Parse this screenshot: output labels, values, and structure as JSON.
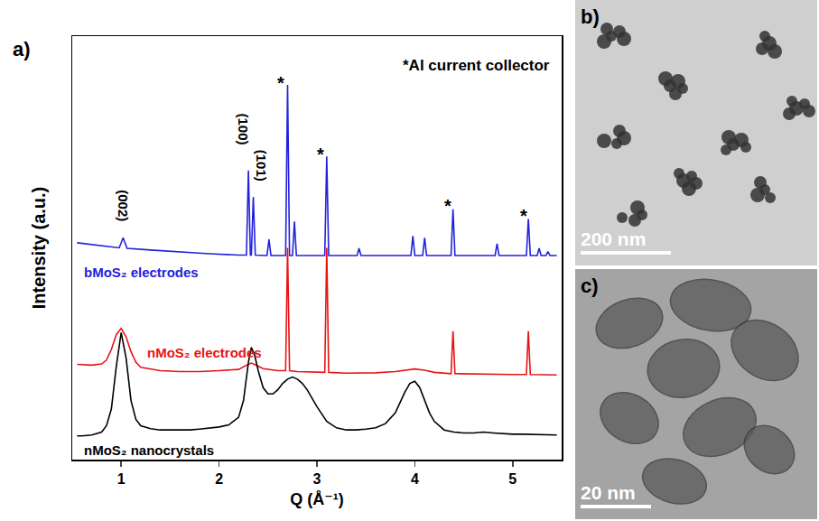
{
  "chart_data": {
    "type": "line",
    "xlabel": "Q (Å⁻¹)",
    "ylabel": "Intensity (a.u.)",
    "xlim": [
      0.5,
      5.5
    ],
    "xticks": [
      1,
      2,
      3,
      4,
      5
    ],
    "ylim": [
      0,
      100
    ],
    "yticks": [],
    "tick_labels": "x",
    "grid": false,
    "series": [
      {
        "name": "bMoS₂ electrodes",
        "color": "#2222dd",
        "x": [
          0.55,
          0.8,
          0.98,
          1.02,
          1.06,
          1.3,
          1.6,
          1.9,
          2.2,
          2.28,
          2.3,
          2.32,
          2.33,
          2.35,
          2.37,
          2.49,
          2.51,
          2.53,
          2.68,
          2.7,
          2.72,
          2.75,
          2.77,
          2.79,
          3.08,
          3.1,
          3.12,
          3.41,
          3.43,
          3.45,
          3.96,
          3.98,
          4.0,
          4.08,
          4.1,
          4.12,
          4.37,
          4.39,
          4.41,
          4.82,
          4.84,
          4.86,
          5.14,
          5.16,
          5.18,
          5.25,
          5.27,
          5.29,
          5.34,
          5.36,
          5.38,
          5.45
        ],
        "values": [
          51.2,
          50.5,
          50,
          52.4,
          49.9,
          49.5,
          49,
          48.6,
          48.3,
          48.3,
          68.3,
          48.3,
          48.3,
          62,
          48.3,
          48.2,
          52,
          48.2,
          48.2,
          88.5,
          48.2,
          48.2,
          56.2,
          48.2,
          48.2,
          71.6,
          48.2,
          48.2,
          49.9,
          48.2,
          48.2,
          52.8,
          48.2,
          48.2,
          52.4,
          48.2,
          48.2,
          59.1,
          48.2,
          48.2,
          51,
          48.2,
          48.2,
          56.8,
          48.2,
          48.2,
          49.9,
          48.2,
          48.2,
          49.1,
          48.2,
          48.2
        ]
      },
      {
        "name": "nMoS₂ electrodes",
        "color": "#e81414",
        "x": [
          0.55,
          0.7,
          0.8,
          0.85,
          0.9,
          0.95,
          1.0,
          1.05,
          1.1,
          1.15,
          1.2,
          1.4,
          1.6,
          1.8,
          2.0,
          2.2,
          2.28,
          2.33,
          2.38,
          2.45,
          2.6,
          2.68,
          2.7,
          2.72,
          2.8,
          3.0,
          3.08,
          3.1,
          3.12,
          3.3,
          3.6,
          3.8,
          3.9,
          4.0,
          4.1,
          4.2,
          4.37,
          4.39,
          4.41,
          4.6,
          5.0,
          5.14,
          5.16,
          5.18,
          5.45
        ],
        "values": [
          22.5,
          22.3,
          22.6,
          23.5,
          26,
          29.5,
          31,
          29,
          25.5,
          23,
          21.8,
          21,
          20.8,
          20.8,
          21,
          21.3,
          22.3,
          22.8,
          22.3,
          21.5,
          21,
          21,
          50,
          21,
          20.8,
          20.6,
          20.6,
          50,
          20.6,
          20.4,
          20.5,
          20.8,
          21.1,
          21.4,
          21.1,
          20.6,
          20.3,
          30.3,
          20.3,
          20.2,
          20.1,
          20.1,
          30.3,
          20.1,
          20
        ]
      },
      {
        "name": "nMoS₂ nanocrystals",
        "color": "#000000",
        "x": [
          0.55,
          0.6,
          0.7,
          0.8,
          0.85,
          0.9,
          0.95,
          1.0,
          1.05,
          1.1,
          1.15,
          1.2,
          1.3,
          1.4,
          1.5,
          1.6,
          1.7,
          1.8,
          1.9,
          2.0,
          2.1,
          2.2,
          2.25,
          2.3,
          2.33,
          2.36,
          2.4,
          2.45,
          2.5,
          2.55,
          2.6,
          2.65,
          2.7,
          2.75,
          2.8,
          2.85,
          2.9,
          3.0,
          3.1,
          3.2,
          3.3,
          3.4,
          3.5,
          3.6,
          3.7,
          3.8,
          3.85,
          3.9,
          3.95,
          4.0,
          4.05,
          4.1,
          4.15,
          4.2,
          4.3,
          4.4,
          4.5,
          4.6,
          4.7,
          4.8,
          4.9,
          5.0,
          5.1,
          5.2,
          5.3,
          5.45
        ],
        "values": [
          5.6,
          5.6,
          5.8,
          6.5,
          8,
          12,
          22,
          30,
          24,
          14,
          9.5,
          8,
          7.3,
          7,
          7,
          7,
          7,
          7.2,
          7.4,
          7.7,
          8.2,
          10,
          14,
          23,
          26.5,
          25,
          21,
          17,
          15.5,
          15.5,
          16.5,
          18,
          19,
          19.5,
          19,
          18,
          16.5,
          12.5,
          9,
          7.5,
          7,
          7,
          7.2,
          7.5,
          8.5,
          11,
          13.5,
          16,
          18,
          18.5,
          17,
          14,
          11,
          9,
          7,
          6.5,
          6.3,
          6.3,
          6.5,
          6.3,
          6.1,
          6,
          6,
          5.9,
          5.9,
          5.8
        ]
      }
    ],
    "annotations": [
      {
        "text": "(002)",
        "x": 1.02,
        "y": 60
      },
      {
        "text": "(100)",
        "x": 2.25,
        "y": 78
      },
      {
        "text": "(101)",
        "x": 2.44,
        "y": 69.5
      },
      {
        "text": "*",
        "x": 2.63,
        "y": 89
      },
      {
        "text": "*",
        "x": 3.04,
        "y": 72
      },
      {
        "text": "*",
        "x": 4.34,
        "y": 60
      },
      {
        "text": "*",
        "x": 5.11,
        "y": 57.5
      },
      {
        "text": "*Al current collector",
        "x": 5.4,
        "y": 93
      }
    ]
  },
  "figure": {
    "panels": [
      {
        "label": "a)"
      },
      {
        "label": "b)",
        "scale_bar": "200 nm"
      },
      {
        "label": "c)",
        "scale_bar": "20 nm"
      }
    ]
  }
}
